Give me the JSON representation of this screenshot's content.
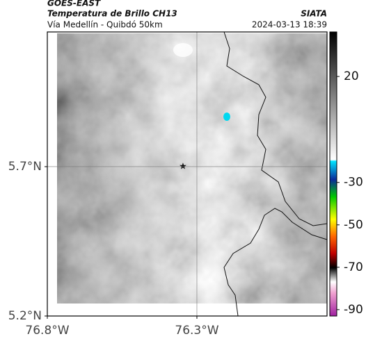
{
  "header": {
    "source": "GOES-EAST",
    "title": "Temperatura de Brillo CH13",
    "subtitle": "Vía Medellín - Quibdó 50km",
    "agency": "SIATA",
    "timestamp": "2024-03-13 18:39"
  },
  "map": {
    "xlim": [
      -76.8,
      -75.865
    ],
    "ylim": [
      5.2,
      6.151
    ],
    "xticks": [
      {
        "value": -76.8,
        "label": "76.8°W"
      },
      {
        "value": -76.3,
        "label": "76.3°W"
      }
    ],
    "yticks": [
      {
        "value": 5.7,
        "label": "5.7°N"
      },
      {
        "value": 5.2,
        "label": "5.2°N"
      }
    ],
    "grid": true
  },
  "colorbar": {
    "range": [
      -93,
      41
    ],
    "ticks": [
      20,
      -30,
      -50,
      -70,
      -90
    ]
  }
}
